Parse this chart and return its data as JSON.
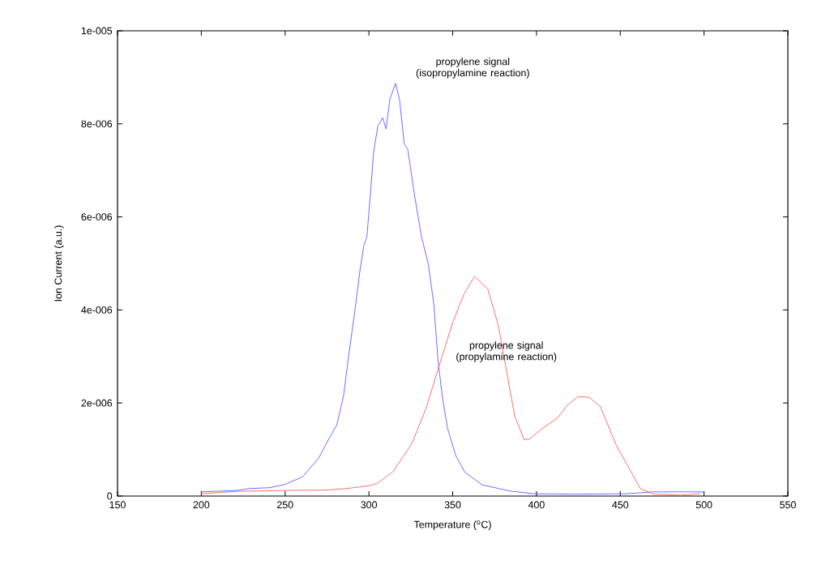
{
  "chart_data": {
    "type": "line",
    "xlabel": "Temperature ($^{o}$C)",
    "ylabel": "Ion Current (a.u.)",
    "xlim": [
      150,
      550
    ],
    "xticks": [
      150,
      200,
      250,
      300,
      350,
      400,
      450,
      500,
      550
    ],
    "ylim": [
      0,
      1e-05
    ],
    "yticks": [
      {
        "value": 0,
        "label": "0"
      },
      {
        "value": 2e-06,
        "label": "2e-006"
      },
      {
        "value": 4e-06,
        "label": "4e-006"
      },
      {
        "value": 6e-06,
        "label": "6e-006"
      },
      {
        "value": 8e-06,
        "label": "8e-006"
      },
      {
        "value": 1e-05,
        "label": "1e-005"
      }
    ],
    "grid": false,
    "legend": false,
    "marker": "none",
    "line_style": "solid",
    "series": [
      {
        "name": "propylene signal (isopropylamine reaction)",
        "color": "#4a4aff",
        "x": [
          200,
          221,
          228.6,
          240.8,
          250,
          260.3,
          270,
          275.9,
          280.8,
          284.9,
          288,
          291.4,
          294.7,
          297,
          298.8,
          301.2,
          302.8,
          305.3,
          308.2,
          310.2,
          312.6,
          315.9,
          318.3,
          321.1,
          323.2,
          327.3,
          331.4,
          335.5,
          338.8,
          341.2,
          343.7,
          346.9,
          351.8,
          357.3,
          367.7,
          383.8,
          398.3,
          422.5,
          454,
          470,
          500
        ],
        "values": [
          9e-08,
          1.2e-07,
          1.6e-07,
          1.8e-07,
          2.5e-07,
          4.1e-07,
          8.1e-07,
          1.22e-06,
          1.52e-06,
          2.16e-06,
          3.04e-06,
          3.92e-06,
          4.86e-06,
          5.39e-06,
          5.57e-06,
          6.63e-06,
          7.39e-06,
          7.95e-06,
          8.13e-06,
          7.89e-06,
          8.54e-06,
          8.87e-06,
          8.51e-06,
          7.57e-06,
          7.45e-06,
          6.45e-06,
          5.57e-06,
          4.98e-06,
          4.1e-06,
          2.93e-06,
          2.16e-06,
          1.46e-06,
          8.7e-07,
          5.1e-07,
          2.4e-07,
          1.1e-07,
          5e-08,
          4e-08,
          5e-08,
          9e-08,
          9e-08
        ]
      },
      {
        "name": "propylene signal (propylamine reaction)",
        "color": "#ff4a4a",
        "x": [
          200,
          221,
          250,
          275,
          286.5,
          300,
          305.3,
          314.3,
          325.7,
          333.9,
          342,
          350.2,
          356.7,
          363,
          371,
          377.4,
          382.3,
          387,
          392.6,
          396.1,
          402.6,
          412.3,
          418.6,
          425,
          431.5,
          438,
          447.6,
          454,
          462,
          470,
          486.3,
          497.6
        ],
        "values": [
          5e-08,
          1e-07,
          1.2e-07,
          1.3e-07,
          1.6e-07,
          2.2e-07,
          2.8e-07,
          5.2e-07,
          1.13e-06,
          1.87e-06,
          2.81e-06,
          3.75e-06,
          4.34e-06,
          4.72e-06,
          4.45e-06,
          3.64e-06,
          2.65e-06,
          1.72e-06,
          1.21e-06,
          1.23e-06,
          1.43e-06,
          1.67e-06,
          1.96e-06,
          2.14e-06,
          2.12e-06,
          1.93e-06,
          1.09e-06,
          6.8e-07,
          1.6e-07,
          4e-08,
          2e-08,
          5e-08
        ]
      }
    ]
  }
}
